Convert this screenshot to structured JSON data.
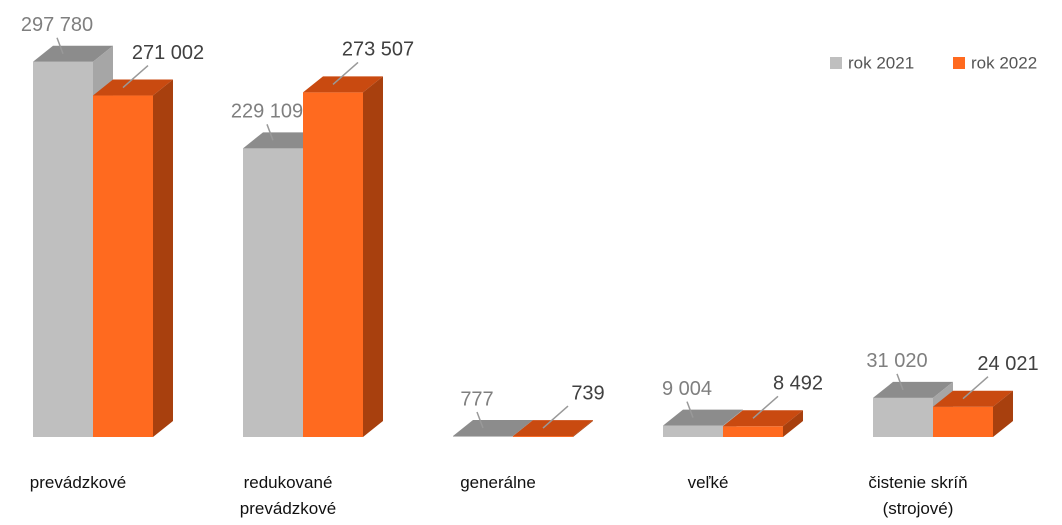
{
  "chart_data": {
    "type": "bar3d",
    "categories": [
      "prevádzkové",
      "redukované prevádzkové",
      "generálne",
      "veľké",
      "čistenie skríň (strojové)"
    ],
    "series": [
      {
        "name": "rok 2021",
        "color": "#bfbfbf",
        "values": [
          297780,
          229109,
          777,
          9004,
          31020
        ],
        "value_labels": [
          "297 780",
          "229 109",
          "777",
          "9 004",
          "31 020"
        ]
      },
      {
        "name": "rok 2022",
        "color": "#ff6a1f",
        "values": [
          271002,
          273507,
          739,
          8492,
          24021
        ],
        "value_labels": [
          "271 002",
          "273 507",
          "739",
          "8 492",
          "24 021"
        ]
      }
    ],
    "legend": "top-right"
  }
}
